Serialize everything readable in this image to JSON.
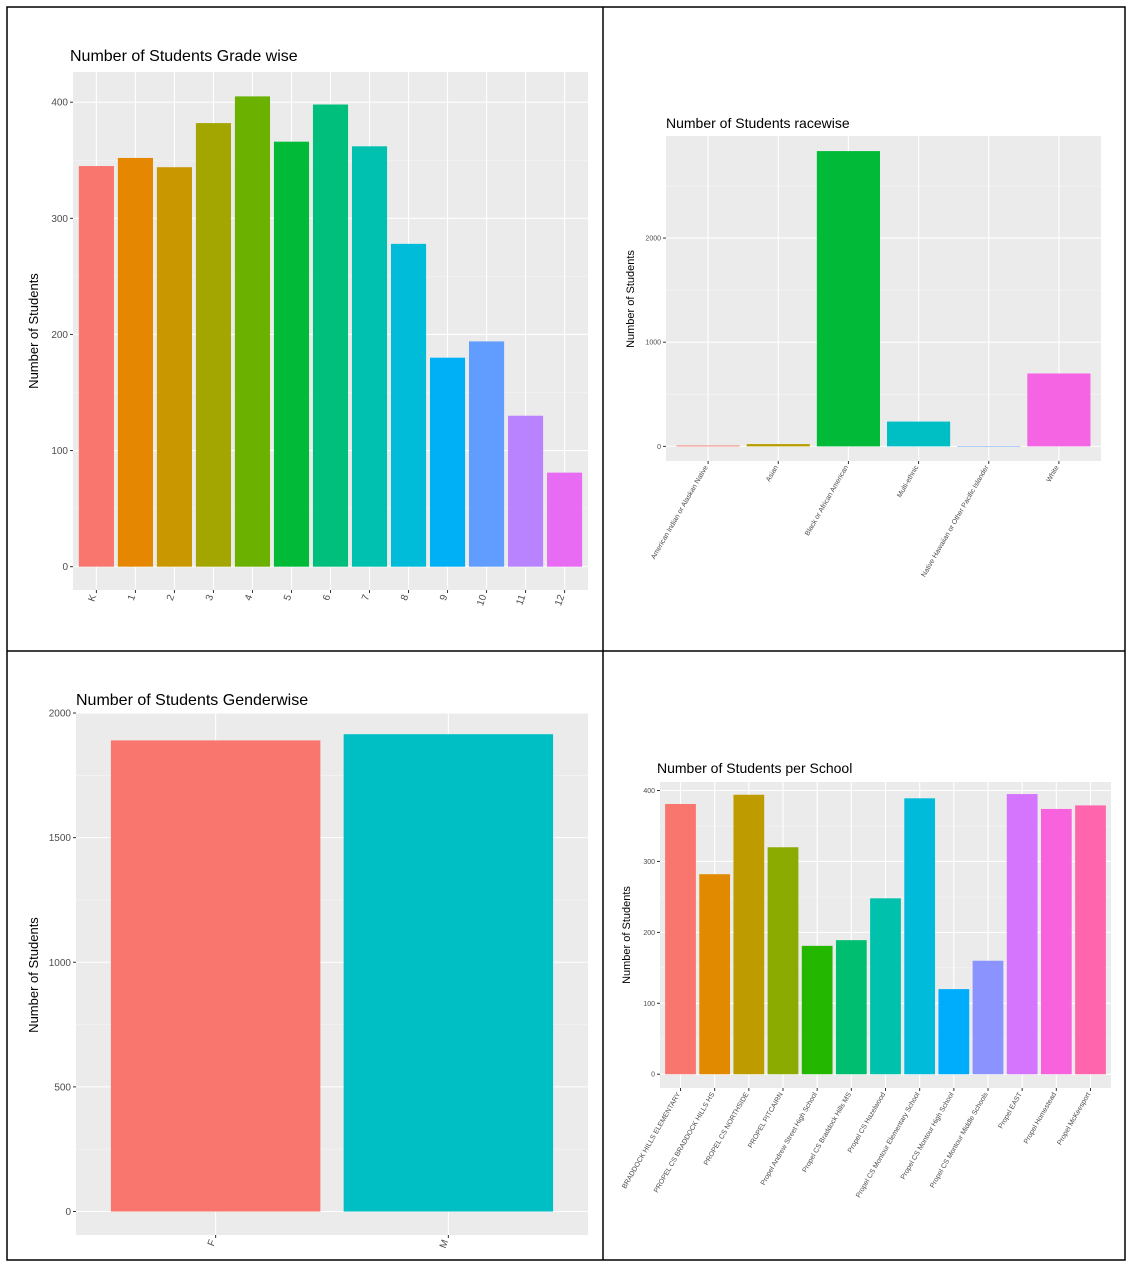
{
  "chart_data": [
    {
      "type": "bar",
      "title": "Number of Students Grade wise",
      "xlabel": "",
      "ylabel": "Number of Students",
      "categories": [
        "K",
        "1",
        "2",
        "3",
        "4",
        "5",
        "6",
        "7",
        "8",
        "9",
        "10",
        "11",
        "12"
      ],
      "values": [
        345,
        352,
        344,
        382,
        405,
        366,
        398,
        362,
        278,
        180,
        194,
        130,
        81
      ],
      "ylim": [
        0,
        426
      ],
      "yticks": [
        0,
        100,
        200,
        300,
        400
      ],
      "grid": true,
      "colors": [
        "#F8766D",
        "#E58700",
        "#C99800",
        "#A3A500",
        "#6BB100",
        "#00BA38",
        "#00BF7D",
        "#00C0AF",
        "#00BCD8",
        "#00B0F6",
        "#619CFF",
        "#B983FF",
        "#E76BF3"
      ]
    },
    {
      "type": "bar",
      "title": "Number of Students racewise",
      "xlabel": "",
      "ylabel": "Number of Students",
      "categories": [
        "American Indian or Alaskan Native",
        "Asian",
        "Black or African American",
        "Multi-ethnic",
        "Native Hawaiian or Other Pacific Islander",
        "White"
      ],
      "values": [
        8,
        22,
        2835,
        238,
        2,
        700
      ],
      "ylim": [
        0,
        2980
      ],
      "yticks": [
        0,
        1000,
        2000
      ],
      "grid": true,
      "colors": [
        "#F8766D",
        "#B79F00",
        "#00BA38",
        "#00BFC4",
        "#619CFF",
        "#F564E3"
      ]
    },
    {
      "type": "bar",
      "title": "Number of Students Genderwise",
      "xlabel": "",
      "ylabel": "Number of Students",
      "categories": [
        "F",
        "M"
      ],
      "values": [
        1890,
        1915
      ],
      "ylim": [
        0,
        2000
      ],
      "yticks": [
        0,
        500,
        1000,
        1500,
        2000
      ],
      "grid": true,
      "colors": [
        "#F8766D",
        "#00BFC4"
      ]
    },
    {
      "type": "bar",
      "title": "Number of Students per School",
      "xlabel": "",
      "ylabel": "Number of Students",
      "categories": [
        "BRADDOCK HILLS ELEMENTARY",
        "PROPEL CS BRADDOCK HILLS HS",
        "PROPEL CS NORTHSIDE",
        "PROPEL PITCAIRN",
        "Propel Andrew Street High School",
        "Propel CS Braddock Hills MS",
        "Propel CS Hazelwood",
        "Propel CS Montour Elementary School",
        "Propel CS Montour High School",
        "Propel CS Montour Middle Schools",
        "Propel EAST",
        "Propel Homestead",
        "Propel McKeesport"
      ],
      "values": [
        381,
        282,
        394,
        320,
        181,
        189,
        248,
        389,
        120,
        160,
        395,
        374,
        379
      ],
      "ylim": [
        0,
        412
      ],
      "yticks": [
        0,
        100,
        200,
        300,
        400
      ],
      "grid": true,
      "colors": [
        "#F8766D",
        "#E18A00",
        "#BE9C00",
        "#8CAB00",
        "#24B700",
        "#00BE70",
        "#00C1AB",
        "#00BBDA",
        "#00ACFC",
        "#8B93FF",
        "#D575FE",
        "#F962DD",
        "#FF65AC"
      ]
    }
  ]
}
